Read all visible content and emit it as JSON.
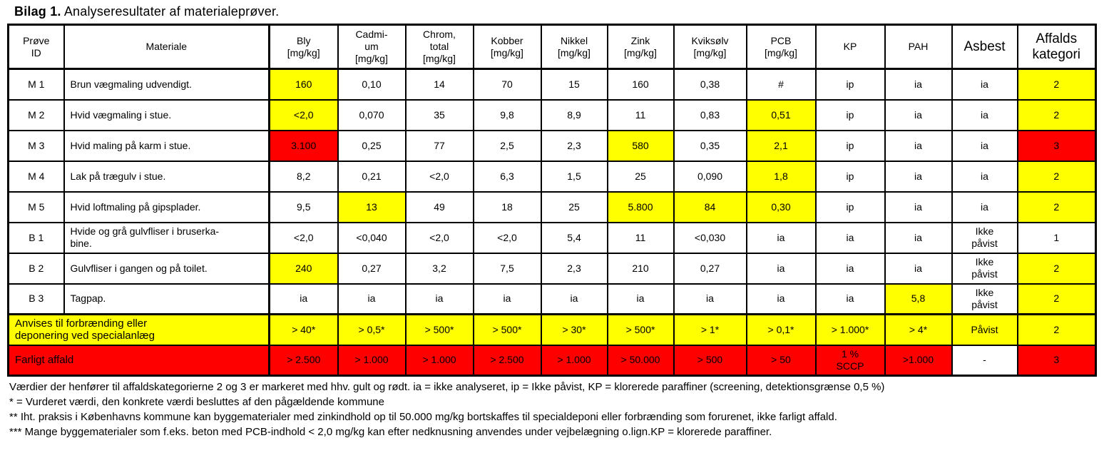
{
  "title": {
    "bold": "Bilag 1.",
    "rest": " Analyseresultater af materialeprøver."
  },
  "colors": {
    "highlight_yellow": "#ffff00",
    "highlight_red": "#ff0000",
    "border": "#000000"
  },
  "table": {
    "headers": [
      {
        "key": "prove-id",
        "label": "Prøve\nID",
        "big": false
      },
      {
        "key": "materiale",
        "label": "Materiale",
        "big": false
      },
      {
        "key": "bly",
        "label": "Bly\n[mg/kg]",
        "big": false
      },
      {
        "key": "cadmium",
        "label": "Cadmi-\num\n[mg/kg]",
        "big": false
      },
      {
        "key": "chrom-total",
        "label": "Chrom,\ntotal\n[mg/kg]",
        "big": false
      },
      {
        "key": "kobber",
        "label": "Kobber\n[mg/kg]",
        "big": false
      },
      {
        "key": "nikkel",
        "label": "Nikkel\n[mg/kg]",
        "big": false
      },
      {
        "key": "zink",
        "label": "Zink\n[mg/kg]",
        "big": false
      },
      {
        "key": "kviksolv",
        "label": "Kviksølv\n[mg/kg]",
        "big": false
      },
      {
        "key": "pcb",
        "label": "PCB\n[mg/kg]",
        "big": false
      },
      {
        "key": "kp",
        "label": "KP",
        "big": false
      },
      {
        "key": "pah",
        "label": "PAH",
        "big": false
      },
      {
        "key": "asbest",
        "label": "Asbest",
        "big": true
      },
      {
        "key": "affaldskategori",
        "label": "Affalds\nkategori",
        "big": true
      }
    ],
    "rows": [
      {
        "id": "M 1",
        "material": "Brun vægmaling udvendigt.",
        "cells": [
          {
            "t": "160",
            "bg": "yellow"
          },
          {
            "t": "0,10"
          },
          {
            "t": "14"
          },
          {
            "t": "70"
          },
          {
            "t": "15"
          },
          {
            "t": "160"
          },
          {
            "t": "0,38"
          },
          {
            "t": "#"
          },
          {
            "t": "ip"
          },
          {
            "t": "ia"
          },
          {
            "t": "ia"
          },
          {
            "t": "2",
            "bg": "yellow"
          }
        ]
      },
      {
        "id": "M 2",
        "material": "Hvid vægmaling  i stue.",
        "cells": [
          {
            "t": "<2,0",
            "bg": "yellow"
          },
          {
            "t": "0,070"
          },
          {
            "t": "35"
          },
          {
            "t": "9,8"
          },
          {
            "t": "8,9"
          },
          {
            "t": "11"
          },
          {
            "t": "0,83"
          },
          {
            "t": "0,51",
            "bg": "yellow"
          },
          {
            "t": "ip"
          },
          {
            "t": "ia"
          },
          {
            "t": "ia"
          },
          {
            "t": "2",
            "bg": "yellow"
          }
        ]
      },
      {
        "id": "M 3",
        "material": "Hvid maling på karm i stue.",
        "cells": [
          {
            "t": "3.100",
            "bg": "red"
          },
          {
            "t": "0,25"
          },
          {
            "t": "77"
          },
          {
            "t": "2,5"
          },
          {
            "t": "2,3"
          },
          {
            "t": "580",
            "bg": "yellow"
          },
          {
            "t": "0,35"
          },
          {
            "t": "2,1",
            "bg": "yellow"
          },
          {
            "t": "ip"
          },
          {
            "t": "ia"
          },
          {
            "t": "ia"
          },
          {
            "t": "3",
            "bg": "red"
          }
        ]
      },
      {
        "id": "M 4",
        "material": "Lak på trægulv i stue.",
        "cells": [
          {
            "t": "8,2"
          },
          {
            "t": "0,21"
          },
          {
            "t": "<2,0"
          },
          {
            "t": "6,3"
          },
          {
            "t": "1,5"
          },
          {
            "t": "25"
          },
          {
            "t": "0,090"
          },
          {
            "t": "1,8",
            "bg": "yellow"
          },
          {
            "t": "ip"
          },
          {
            "t": "ia"
          },
          {
            "t": "ia"
          },
          {
            "t": "2",
            "bg": "yellow"
          }
        ]
      },
      {
        "id": "M 5",
        "material": "Hvid loftmaling på gipsplader.",
        "cells": [
          {
            "t": "9,5"
          },
          {
            "t": "13",
            "bg": "yellow"
          },
          {
            "t": "49"
          },
          {
            "t": "18"
          },
          {
            "t": "25"
          },
          {
            "t": "5.800",
            "bg": "yellow"
          },
          {
            "t": "84",
            "bg": "yellow"
          },
          {
            "t": "0,30",
            "bg": "yellow"
          },
          {
            "t": "ip"
          },
          {
            "t": "ia"
          },
          {
            "t": "ia"
          },
          {
            "t": "2",
            "bg": "yellow"
          }
        ]
      },
      {
        "id": "B 1",
        "material": "Hvide og grå gulvfliser i bruserka-\nbine.",
        "cells": [
          {
            "t": "<2,0"
          },
          {
            "t": "<0,040"
          },
          {
            "t": "<2,0"
          },
          {
            "t": "<2,0"
          },
          {
            "t": "5,4"
          },
          {
            "t": "11"
          },
          {
            "t": "<0,030"
          },
          {
            "t": "ia"
          },
          {
            "t": "ia"
          },
          {
            "t": "ia"
          },
          {
            "t": "Ikke\npåvist"
          },
          {
            "t": "1"
          }
        ]
      },
      {
        "id": "B 2",
        "material": "Gulvfliser i gangen og på toilet.",
        "cells": [
          {
            "t": "240",
            "bg": "yellow"
          },
          {
            "t": "0,27"
          },
          {
            "t": "3,2"
          },
          {
            "t": "7,5"
          },
          {
            "t": "2,3"
          },
          {
            "t": "210"
          },
          {
            "t": "0,27"
          },
          {
            "t": "ia"
          },
          {
            "t": "ia"
          },
          {
            "t": "ia"
          },
          {
            "t": "Ikke\npåvist"
          },
          {
            "t": "2",
            "bg": "yellow"
          }
        ]
      },
      {
        "id": "B 3",
        "material": "Tagpap.",
        "cells": [
          {
            "t": "ia"
          },
          {
            "t": "ia"
          },
          {
            "t": "ia"
          },
          {
            "t": "ia"
          },
          {
            "t": "ia"
          },
          {
            "t": "ia"
          },
          {
            "t": "ia"
          },
          {
            "t": "ia"
          },
          {
            "t": "ia"
          },
          {
            "t": "5,8",
            "bg": "yellow"
          },
          {
            "t": "Ikke\npåvist"
          },
          {
            "t": "2",
            "bg": "yellow"
          }
        ]
      }
    ],
    "limit_rows": [
      {
        "label": "Anvises til forbrænding eller\ndeponering ved specialanlæg",
        "bg": "yellow",
        "cells": [
          {
            "t": "> 40*"
          },
          {
            "t": "> 0,5*"
          },
          {
            "t": "> 500*"
          },
          {
            "t": "> 500*"
          },
          {
            "t": "> 30*"
          },
          {
            "t": "> 500*"
          },
          {
            "t": "> 1*"
          },
          {
            "t": "> 0,1*"
          },
          {
            "t": "> 1.000*"
          },
          {
            "t": "> 4*"
          },
          {
            "t": "Påvist"
          },
          {
            "t": "2"
          }
        ]
      },
      {
        "label": "Farligt affald",
        "bg": "red",
        "cells": [
          {
            "t": "> 2.500"
          },
          {
            "t": "> 1.000"
          },
          {
            "t": "> 1.000"
          },
          {
            "t": "> 2.500"
          },
          {
            "t": "> 1.000"
          },
          {
            "t": "> 50.000"
          },
          {
            "t": "> 500"
          },
          {
            "t": "> 50"
          },
          {
            "t": "1 %\nSCCP"
          },
          {
            "t": ">1.000"
          },
          {
            "t": "-",
            "bg": "white"
          },
          {
            "t": "3"
          }
        ]
      }
    ]
  },
  "footnotes": [
    "Værdier der henfører til affaldskategorierne 2 og 3 er markeret med hhv. gult og rødt. ia = ikke analyseret, ip = Ikke påvist, KP = klorerede paraffiner (screening, detektionsgrænse 0,5 %)",
    "* = Vurderet værdi, den konkrete værdi besluttes af den pågældende kommune",
    "** Iht. praksis i Københavns kommune kan byggematerialer med zinkindhold op til 50.000 mg/kg bortskaffes til specialdeponi eller forbrænding som forurenet, ikke farligt affald.",
    "*** Mange byggematerialer som f.eks. beton med PCB-indhold < 2,0 mg/kg kan efter nedknusning anvendes under vejbelægning o.lign.KP = klorerede paraffiner."
  ]
}
